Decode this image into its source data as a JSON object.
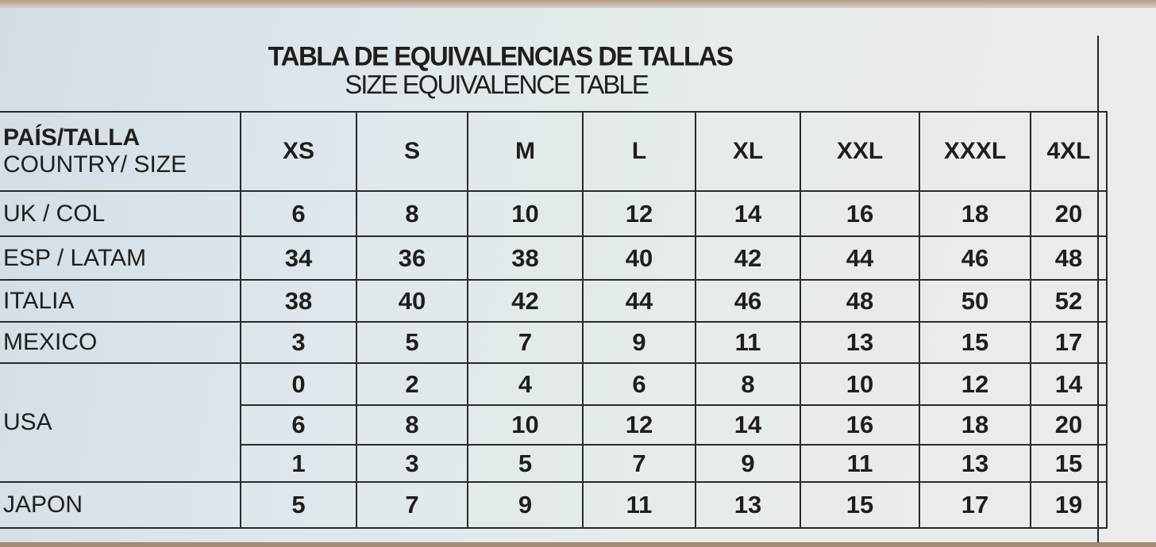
{
  "title": "TABLA DE EQUIVALENCIAS DE TALLAS",
  "subtitle": "SIZE EQUIVALENCE TABLE",
  "header": {
    "country_es": "PAÍS/TALLA",
    "country_en": "COUNTRY/ SIZE",
    "sizes": [
      "XS",
      "S",
      "M",
      "L",
      "XL",
      "XXL",
      "XXXL",
      "4XL"
    ]
  },
  "rows": [
    {
      "country": "UK / COL",
      "values": [
        "6",
        "8",
        "10",
        "12",
        "14",
        "16",
        "18",
        "20"
      ]
    },
    {
      "country": "ESP / LATAM",
      "values": [
        "34",
        "36",
        "38",
        "40",
        "42",
        "44",
        "46",
        "48"
      ]
    },
    {
      "country": "ITALIA",
      "values": [
        "38",
        "40",
        "42",
        "44",
        "46",
        "48",
        "50",
        "52"
      ]
    },
    {
      "country": "MEXICO",
      "values": [
        "3",
        "5",
        "7",
        "9",
        "11",
        "13",
        "15",
        "17"
      ]
    },
    {
      "country": "USA",
      "values": [
        "0",
        "2",
        "4",
        "6",
        "8",
        "10",
        "12",
        "14"
      ]
    },
    {
      "country": "",
      "values": [
        "6",
        "8",
        "10",
        "12",
        "14",
        "16",
        "18",
        "20"
      ]
    },
    {
      "country": "",
      "values": [
        "1",
        "3",
        "5",
        "7",
        "9",
        "11",
        "13",
        "15"
      ]
    },
    {
      "country": "JAPON",
      "values": [
        "5",
        "7",
        "9",
        "11",
        "13",
        "15",
        "17",
        "19"
      ]
    }
  ]
}
